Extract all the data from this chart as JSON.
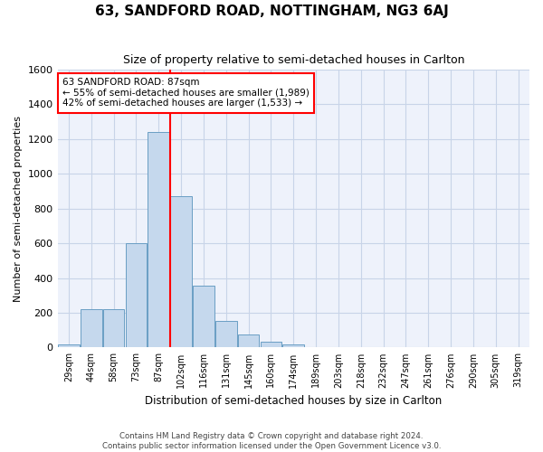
{
  "title": "63, SANDFORD ROAD, NOTTINGHAM, NG3 6AJ",
  "subtitle": "Size of property relative to semi-detached houses in Carlton",
  "xlabel": "Distribution of semi-detached houses by size in Carlton",
  "ylabel": "Number of semi-detached properties",
  "bin_labels": [
    "29sqm",
    "44sqm",
    "58sqm",
    "73sqm",
    "87sqm",
    "102sqm",
    "116sqm",
    "131sqm",
    "145sqm",
    "160sqm",
    "174sqm",
    "189sqm",
    "203sqm",
    "218sqm",
    "232sqm",
    "247sqm",
    "261sqm",
    "276sqm",
    "290sqm",
    "305sqm",
    "319sqm"
  ],
  "bar_heights": [
    20,
    220,
    220,
    600,
    1240,
    870,
    355,
    155,
    75,
    35,
    20,
    0,
    0,
    0,
    0,
    0,
    0,
    0,
    0,
    0,
    0
  ],
  "bar_color": "#c5d8ed",
  "bar_edge_color": "#6a9ec4",
  "highlight_bin_index": 4,
  "annotation_line1": "63 SANDFORD ROAD: 87sqm",
  "annotation_line2": "← 55% of semi-detached houses are smaller (1,989)",
  "annotation_line3": "42% of semi-detached houses are larger (1,533) →",
  "ylim": [
    0,
    1600
  ],
  "yticks": [
    0,
    200,
    400,
    600,
    800,
    1000,
    1200,
    1400,
    1600
  ],
  "footer1": "Contains HM Land Registry data © Crown copyright and database right 2024.",
  "footer2": "Contains public sector information licensed under the Open Government Licence v3.0.",
  "background_color": "#eef2fb",
  "grid_color": "#c8d4e8"
}
